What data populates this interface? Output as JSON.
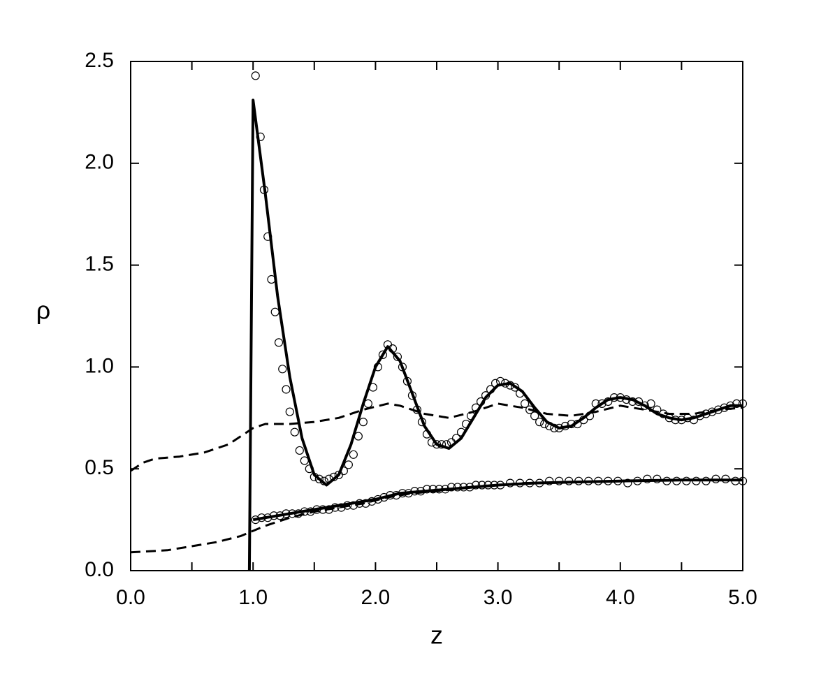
{
  "chart_data": {
    "type": "line",
    "xlabel": "z",
    "ylabel": "ρ",
    "xlim": [
      0,
      5
    ],
    "ylim": [
      0,
      2.5
    ],
    "xticks": [
      {
        "value": 0,
        "label": "0.0"
      },
      {
        "value": 1,
        "label": "1.0"
      },
      {
        "value": 2,
        "label": "2.0"
      },
      {
        "value": 3,
        "label": "3.0"
      },
      {
        "value": 4,
        "label": "4.0"
      },
      {
        "value": 5,
        "label": "5.0"
      }
    ],
    "xminor_ticks": [
      0.5,
      1.5,
      2.5,
      3.5,
      4.5
    ],
    "yticks": [
      {
        "value": 0,
        "label": "0.0"
      },
      0.5,
      {
        "value": 1,
        "label": "1.0"
      },
      1.5,
      {
        "value": 2,
        "label": "2.0"
      },
      2.5
    ],
    "color": "#000000",
    "series": [
      {
        "style": "solid",
        "x": [
          0.97,
          1.0,
          1.1,
          1.2,
          1.3,
          1.4,
          1.5,
          1.6,
          1.7,
          1.8,
          1.9,
          2.0,
          2.1,
          2.2,
          2.3,
          2.4,
          2.5,
          2.6,
          2.7,
          2.8,
          2.9,
          3.0,
          3.1,
          3.2,
          3.3,
          3.4,
          3.5,
          3.6,
          3.7,
          3.8,
          3.9,
          4.0,
          4.1,
          4.2,
          4.3,
          4.4,
          4.5,
          4.6,
          4.7,
          4.8,
          4.9,
          5.0
        ],
        "values": [
          0,
          2.31,
          1.85,
          1.35,
          0.95,
          0.65,
          0.47,
          0.42,
          0.47,
          0.62,
          0.82,
          1.0,
          1.1,
          1.03,
          0.87,
          0.71,
          0.62,
          0.6,
          0.65,
          0.75,
          0.85,
          0.91,
          0.92,
          0.88,
          0.8,
          0.73,
          0.7,
          0.71,
          0.75,
          0.8,
          0.84,
          0.85,
          0.84,
          0.81,
          0.77,
          0.75,
          0.74,
          0.75,
          0.77,
          0.79,
          0.81,
          0.81
        ]
      },
      {
        "style": "solid",
        "x": [
          1.0,
          1.2,
          1.4,
          1.6,
          1.8,
          2.0,
          2.2,
          2.4,
          2.6,
          2.8,
          3.0,
          3.3,
          3.6,
          4.0,
          4.5,
          5.0
        ],
        "values": [
          0.25,
          0.27,
          0.29,
          0.31,
          0.33,
          0.35,
          0.38,
          0.39,
          0.4,
          0.41,
          0.42,
          0.43,
          0.435,
          0.44,
          0.445,
          0.445
        ]
      },
      {
        "style": "dashed",
        "x": [
          0,
          0.1,
          0.2,
          0.4,
          0.6,
          0.8,
          0.9,
          1.0,
          1.1,
          1.3,
          1.5,
          1.7,
          1.9,
          2.1,
          2.2,
          2.4,
          2.6,
          2.8,
          3.0,
          3.2,
          3.4,
          3.6,
          3.8,
          4.0,
          4.2,
          4.4,
          4.6,
          4.8,
          5.0
        ],
        "values": [
          0.49,
          0.53,
          0.55,
          0.56,
          0.58,
          0.62,
          0.66,
          0.7,
          0.72,
          0.72,
          0.73,
          0.75,
          0.79,
          0.82,
          0.81,
          0.77,
          0.75,
          0.78,
          0.82,
          0.8,
          0.77,
          0.76,
          0.78,
          0.81,
          0.79,
          0.77,
          0.77,
          0.79,
          0.8
        ]
      },
      {
        "style": "dashed",
        "x": [
          0,
          0.3,
          0.5,
          0.7,
          0.9,
          1.1,
          1.3,
          1.5,
          1.7,
          1.9,
          2.1,
          2.3,
          2.5,
          2.8,
          3.2,
          3.6,
          4.0,
          4.5,
          5.0
        ],
        "values": [
          0.09,
          0.1,
          0.12,
          0.14,
          0.17,
          0.22,
          0.26,
          0.29,
          0.31,
          0.33,
          0.36,
          0.38,
          0.39,
          0.41,
          0.43,
          0.435,
          0.44,
          0.445,
          0.445
        ]
      },
      {
        "style": "markers",
        "x": [
          1.02,
          1.06,
          1.09,
          1.12,
          1.15,
          1.18,
          1.21,
          1.24,
          1.27,
          1.3,
          1.34,
          1.38,
          1.42,
          1.46,
          1.5,
          1.54,
          1.58,
          1.62,
          1.66,
          1.7,
          1.74,
          1.78,
          1.82,
          1.86,
          1.9,
          1.94,
          1.98,
          2.02,
          2.06,
          2.1,
          2.14,
          2.18,
          2.22,
          2.26,
          2.3,
          2.34,
          2.38,
          2.42,
          2.46,
          2.5,
          2.54,
          2.58,
          2.62,
          2.66,
          2.7,
          2.74,
          2.78,
          2.82,
          2.86,
          2.9,
          2.94,
          2.98,
          3.02,
          3.06,
          3.1,
          3.14,
          3.18,
          3.22,
          3.26,
          3.3,
          3.34,
          3.38,
          3.42,
          3.46,
          3.5,
          3.55,
          3.6,
          3.65,
          3.7,
          3.75,
          3.8,
          3.85,
          3.9,
          3.95,
          4.0,
          4.05,
          4.1,
          4.15,
          4.2,
          4.25,
          4.3,
          4.35,
          4.4,
          4.45,
          4.5,
          4.55,
          4.6,
          4.65,
          4.7,
          4.75,
          4.8,
          4.85,
          4.9,
          4.95,
          5.0
        ],
        "values": [
          2.43,
          2.13,
          1.87,
          1.64,
          1.43,
          1.27,
          1.12,
          0.99,
          0.89,
          0.78,
          0.68,
          0.59,
          0.54,
          0.5,
          0.46,
          0.45,
          0.44,
          0.45,
          0.46,
          0.47,
          0.49,
          0.52,
          0.57,
          0.66,
          0.73,
          0.82,
          0.9,
          1.0,
          1.06,
          1.11,
          1.09,
          1.05,
          1.0,
          0.93,
          0.86,
          0.79,
          0.73,
          0.67,
          0.63,
          0.62,
          0.62,
          0.62,
          0.63,
          0.65,
          0.68,
          0.72,
          0.76,
          0.8,
          0.83,
          0.86,
          0.89,
          0.92,
          0.93,
          0.92,
          0.91,
          0.9,
          0.87,
          0.82,
          0.79,
          0.76,
          0.73,
          0.72,
          0.71,
          0.7,
          0.7,
          0.71,
          0.72,
          0.72,
          0.74,
          0.76,
          0.82,
          0.82,
          0.83,
          0.85,
          0.85,
          0.84,
          0.83,
          0.83,
          0.81,
          0.82,
          0.79,
          0.77,
          0.75,
          0.74,
          0.74,
          0.75,
          0.74,
          0.76,
          0.77,
          0.78,
          0.79,
          0.8,
          0.81,
          0.82,
          0.82
        ]
      },
      {
        "style": "markers",
        "x": [
          1.02,
          1.07,
          1.12,
          1.17,
          1.22,
          1.27,
          1.32,
          1.37,
          1.42,
          1.47,
          1.52,
          1.57,
          1.62,
          1.67,
          1.72,
          1.77,
          1.82,
          1.87,
          1.92,
          1.97,
          2.02,
          2.07,
          2.12,
          2.17,
          2.22,
          2.27,
          2.32,
          2.37,
          2.42,
          2.47,
          2.52,
          2.57,
          2.62,
          2.67,
          2.72,
          2.77,
          2.82,
          2.87,
          2.92,
          2.97,
          3.02,
          3.1,
          3.18,
          3.26,
          3.34,
          3.42,
          3.5,
          3.58,
          3.66,
          3.74,
          3.82,
          3.9,
          3.98,
          4.06,
          4.14,
          4.22,
          4.3,
          4.38,
          4.46,
          4.54,
          4.62,
          4.7,
          4.78,
          4.86,
          4.94,
          5.0
        ],
        "values": [
          0.25,
          0.26,
          0.26,
          0.27,
          0.27,
          0.28,
          0.28,
          0.28,
          0.29,
          0.29,
          0.3,
          0.3,
          0.3,
          0.31,
          0.31,
          0.32,
          0.32,
          0.33,
          0.33,
          0.34,
          0.35,
          0.36,
          0.37,
          0.37,
          0.38,
          0.38,
          0.39,
          0.39,
          0.4,
          0.4,
          0.4,
          0.4,
          0.41,
          0.41,
          0.41,
          0.41,
          0.42,
          0.42,
          0.42,
          0.42,
          0.42,
          0.43,
          0.43,
          0.43,
          0.43,
          0.44,
          0.44,
          0.44,
          0.44,
          0.44,
          0.44,
          0.44,
          0.44,
          0.43,
          0.44,
          0.45,
          0.45,
          0.44,
          0.44,
          0.44,
          0.44,
          0.44,
          0.45,
          0.45,
          0.44,
          0.44
        ]
      }
    ]
  }
}
